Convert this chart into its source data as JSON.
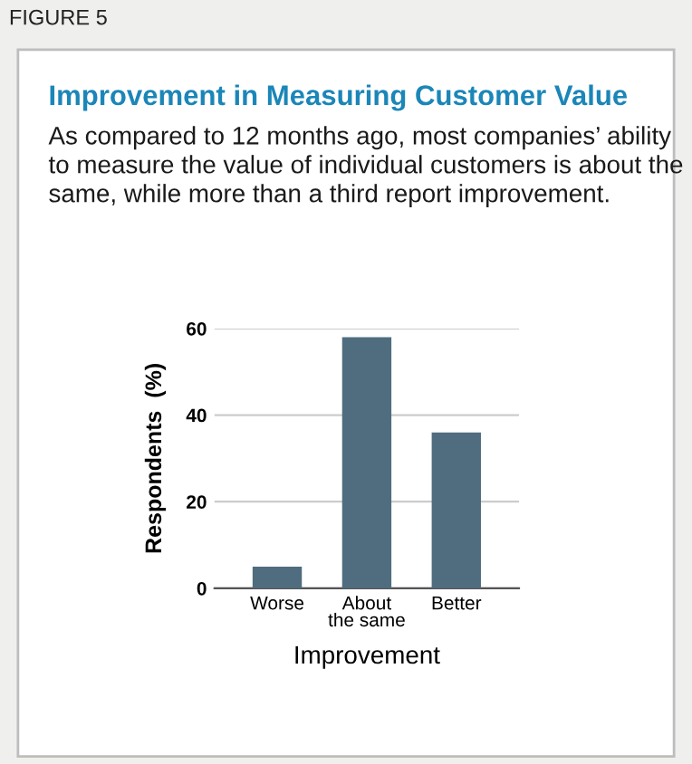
{
  "chart_data": {
    "type": "bar",
    "title": "Improvement in Measuring Customer Value",
    "subtitle": "As compared to 12 months ago, most companies’ ability to measure the value of individual customers is about the same, while more than a third report improvement.",
    "annotations": [
      "FIGURE 5"
    ],
    "categories": [
      "Worse",
      "About\nthe same",
      "Better"
    ],
    "values": [
      5,
      58,
      36
    ],
    "color": "#4f6d7e",
    "xlabel": "Improvement",
    "ylabel": "Respondents  (%)",
    "ylim": [
      0,
      60
    ],
    "yticks": [
      0,
      20,
      40,
      60
    ],
    "grid": "y"
  }
}
